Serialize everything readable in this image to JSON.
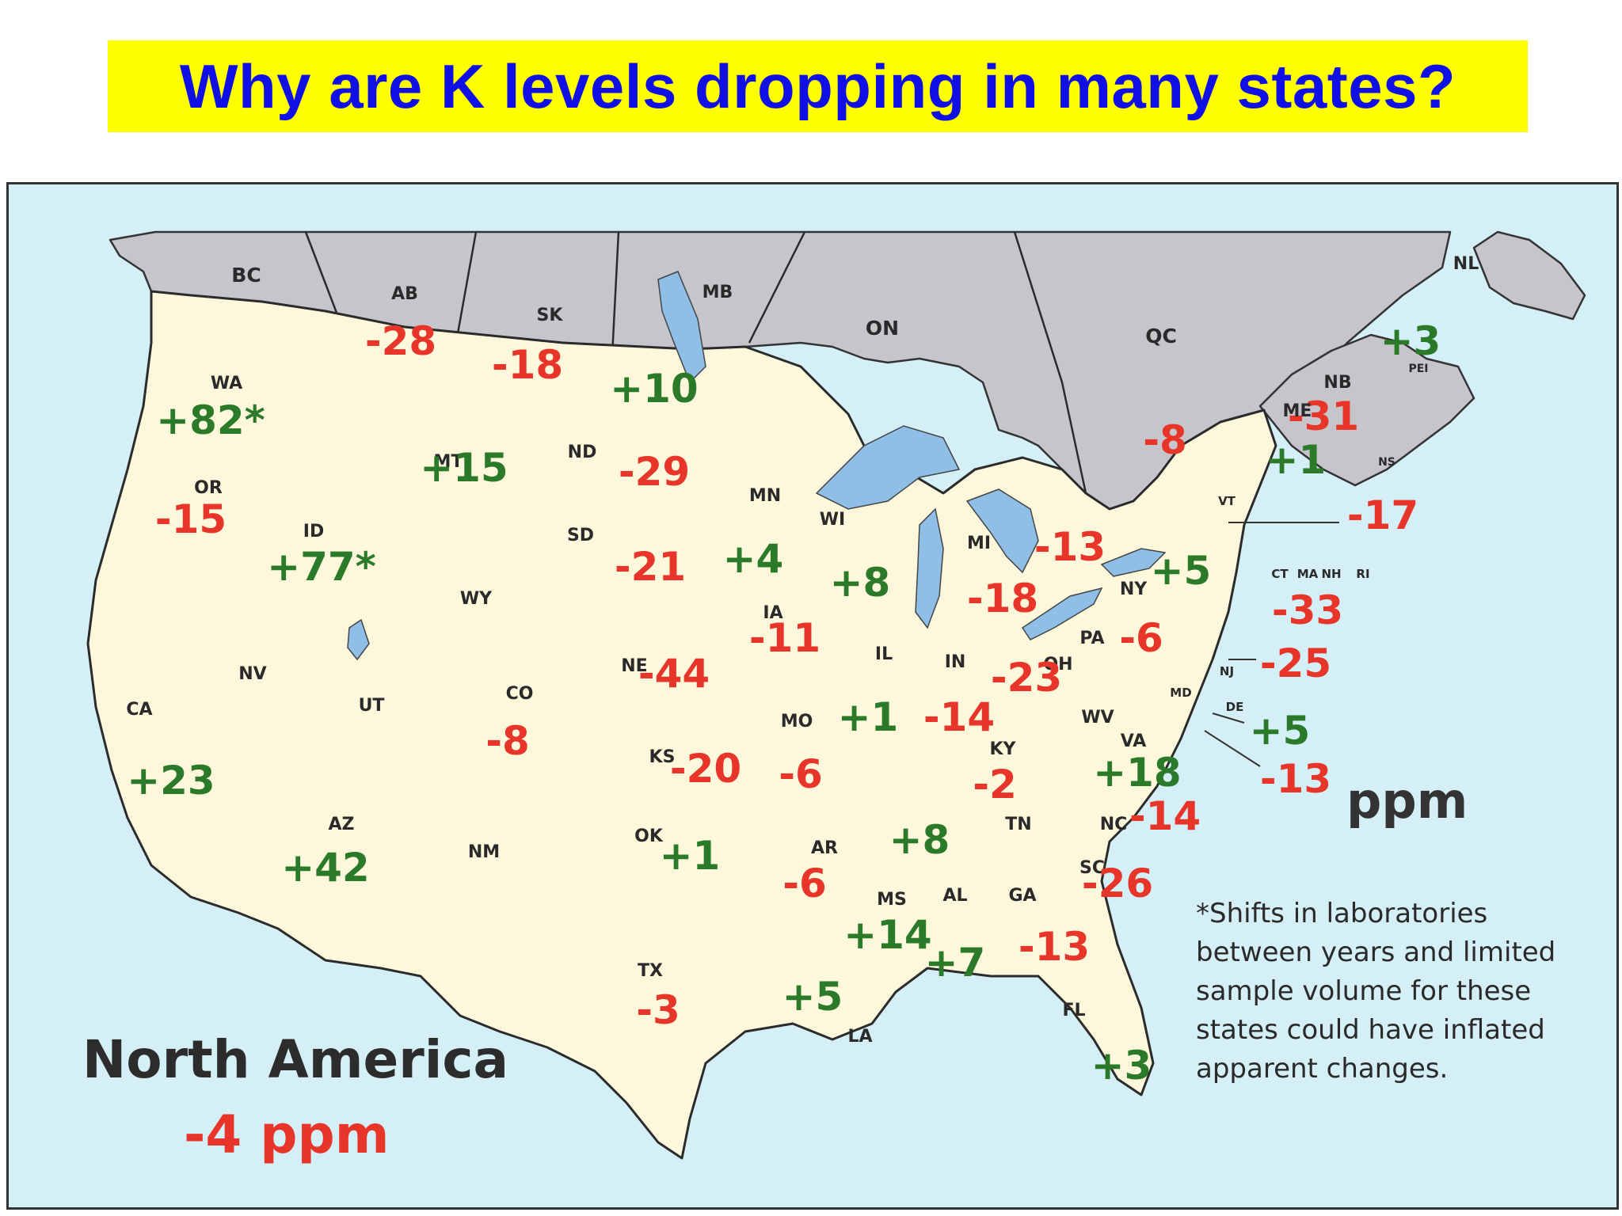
{
  "title": "Why are K levels dropping in many states?",
  "colors": {
    "title_bg": "#ffff00",
    "title_text": "#1010e6",
    "ocean": "#d4eff6",
    "canada_fill": "#c6c5cb",
    "usa_fill": "#fdf8dc",
    "lake": "#8fbfe6",
    "increase": "#2a7a2a",
    "decrease": "#e8352a"
  },
  "unit_label": "ppm",
  "footnote": "*Shifts in laboratories between years and limited sample volume for these states could have inflated apparent changes.",
  "region_name": "North America",
  "region_value": "-4 ppm",
  "regions": [
    {
      "abbr": "BC",
      "value": ""
    },
    {
      "abbr": "AB",
      "value": "-28"
    },
    {
      "abbr": "SK",
      "value": "-18"
    },
    {
      "abbr": "MB",
      "value": "+10"
    },
    {
      "abbr": "ON",
      "value": ""
    },
    {
      "abbr": "QC",
      "value": "-8"
    },
    {
      "abbr": "NL",
      "value": ""
    },
    {
      "abbr": "NB",
      "value": "-31"
    },
    {
      "abbr": "PEI",
      "value": "+3"
    },
    {
      "abbr": "NS",
      "value": ""
    },
    {
      "abbr": "WA",
      "value": "+82*"
    },
    {
      "abbr": "OR",
      "value": "-15"
    },
    {
      "abbr": "CA",
      "value": "+23"
    },
    {
      "abbr": "ID",
      "value": "+77*"
    },
    {
      "abbr": "NV",
      "value": ""
    },
    {
      "abbr": "MT",
      "value": "+15"
    },
    {
      "abbr": "WY",
      "value": ""
    },
    {
      "abbr": "UT",
      "value": ""
    },
    {
      "abbr": "AZ",
      "value": "+42"
    },
    {
      "abbr": "CO",
      "value": "-8"
    },
    {
      "abbr": "NM",
      "value": ""
    },
    {
      "abbr": "ND",
      "value": "-29"
    },
    {
      "abbr": "SD",
      "value": "-21"
    },
    {
      "abbr": "NE",
      "value": "-44"
    },
    {
      "abbr": "KS",
      "value": "-20"
    },
    {
      "abbr": "OK",
      "value": "+1"
    },
    {
      "abbr": "TX",
      "value": "-3"
    },
    {
      "abbr": "MN",
      "value": "+4"
    },
    {
      "abbr": "IA",
      "value": "-11"
    },
    {
      "abbr": "MO",
      "value": "-6"
    },
    {
      "abbr": "AR",
      "value": "-6"
    },
    {
      "abbr": "LA",
      "value": "+5"
    },
    {
      "abbr": "WI",
      "value": "+8"
    },
    {
      "abbr": "IL",
      "value": "+1"
    },
    {
      "abbr": "MI",
      "value": "-18"
    },
    {
      "abbr": "IN",
      "value": "-14"
    },
    {
      "abbr": "OH",
      "value": "-23"
    },
    {
      "abbr": "KY",
      "value": "-2"
    },
    {
      "abbr": "TN",
      "value": "+8"
    },
    {
      "abbr": "MS",
      "value": "+14"
    },
    {
      "abbr": "AL",
      "value": "+7"
    },
    {
      "abbr": "GA",
      "value": "-13"
    },
    {
      "abbr": "FL",
      "value": "+3"
    },
    {
      "abbr": "SC",
      "value": "-26"
    },
    {
      "abbr": "NC",
      "value": "-14"
    },
    {
      "abbr": "VA",
      "value": "+18"
    },
    {
      "abbr": "WV",
      "value": ""
    },
    {
      "abbr": "PA",
      "value": "-6"
    },
    {
      "abbr": "NY",
      "value": "+5"
    },
    {
      "abbr": "ME",
      "value": "+1"
    },
    {
      "abbr": "VT",
      "value": "-17"
    },
    {
      "abbr": "NH",
      "value": ""
    },
    {
      "abbr": "MA",
      "value": "-33"
    },
    {
      "abbr": "CT",
      "value": ""
    },
    {
      "abbr": "RI",
      "value": ""
    },
    {
      "abbr": "NJ",
      "value": "-25"
    },
    {
      "abbr": "DE",
      "value": "+5"
    },
    {
      "abbr": "MD",
      "value": "-13"
    },
    {
      "abbr": "ON lakes region",
      "value": "-13"
    }
  ]
}
